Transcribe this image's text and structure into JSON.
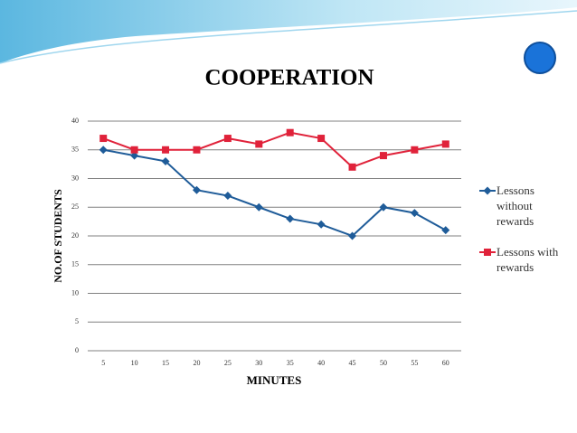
{
  "chart_data": {
    "type": "line",
    "title": "COOPERATION",
    "x_label": "MINUTES",
    "y_label": "NO.OF STUDENTS",
    "categories": [
      "5",
      "10",
      "15",
      "20",
      "25",
      "30",
      "35",
      "40",
      "45",
      "50",
      "55",
      "60"
    ],
    "series": [
      {
        "name": "Lessons without rewards",
        "color": "#1f5c99",
        "marker": "diamond",
        "values": [
          35,
          34,
          33,
          28,
          27,
          25,
          23,
          22,
          20,
          25,
          24,
          21
        ]
      },
      {
        "name": "Lessons with rewards",
        "color": "#e0223a",
        "marker": "square",
        "values": [
          37,
          35,
          35,
          35,
          37,
          36,
          38,
          37,
          32,
          34,
          35,
          36
        ]
      }
    ],
    "ylim": [
      0,
      40
    ],
    "yticks": [
      0,
      5,
      10,
      15,
      20,
      25,
      30,
      35,
      40
    ],
    "grid": true,
    "legend": "right"
  }
}
